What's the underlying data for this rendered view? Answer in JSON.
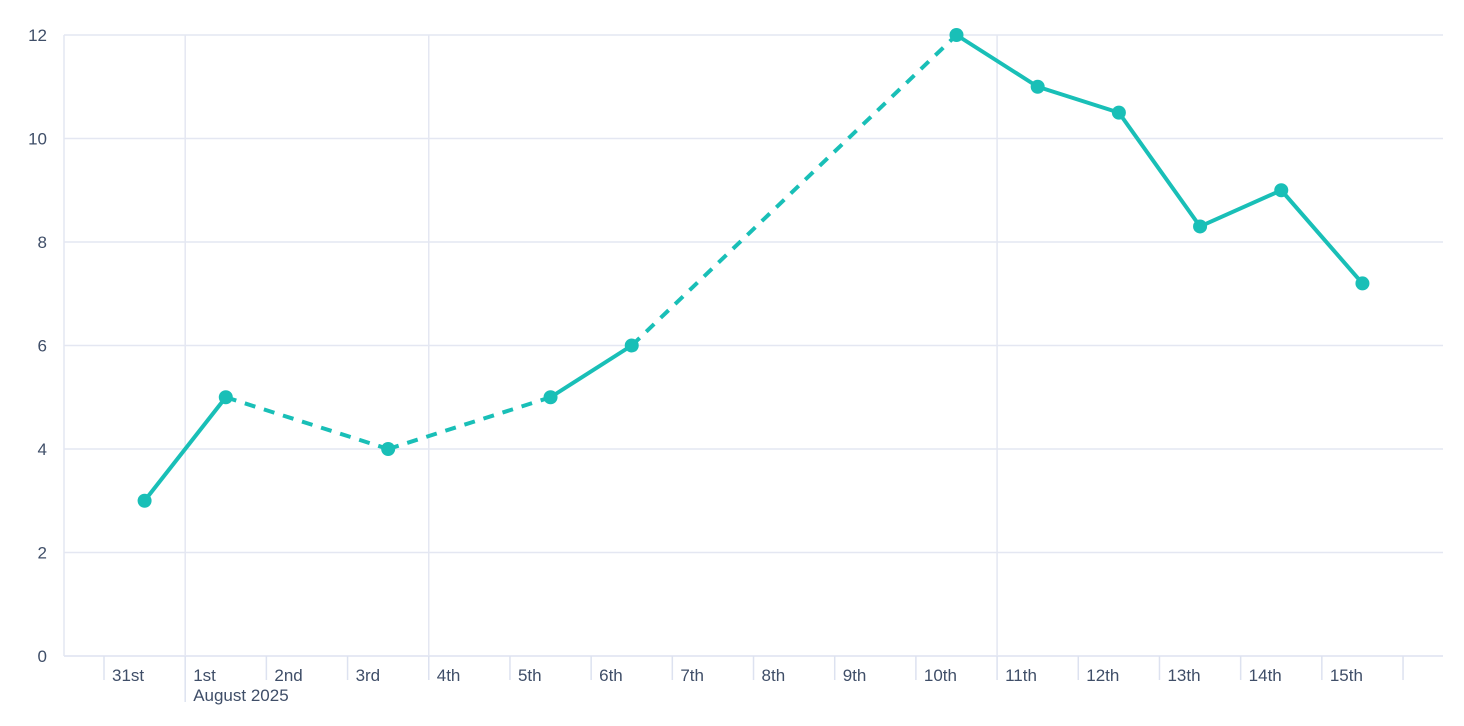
{
  "chart_data": {
    "type": "line",
    "title": "",
    "x_axis": {
      "tick_labels": [
        "31st",
        "1st",
        "2nd",
        "3rd",
        "4th",
        "5th",
        "6th",
        "7th",
        "8th",
        "9th",
        "10th",
        "11th",
        "12th",
        "13th",
        "14th",
        "15th"
      ],
      "month_label": "August 2025",
      "month_label_at": "1st"
    },
    "y_axis": {
      "tick_labels": [
        "0",
        "2",
        "4",
        "6",
        "8",
        "10",
        "12"
      ],
      "ticks": [
        0,
        2,
        4,
        6,
        8,
        10,
        12
      ],
      "range": [
        0,
        12
      ]
    },
    "series": [
      {
        "name": "",
        "color": "#19bfb7",
        "points": [
          {
            "x": "31st",
            "y": 3
          },
          {
            "x": "1st",
            "y": 5
          },
          {
            "x": "3rd",
            "y": 4
          },
          {
            "x": "5th",
            "y": 5
          },
          {
            "x": "6th",
            "y": 6
          },
          {
            "x": "10th",
            "y": 12
          },
          {
            "x": "11th",
            "y": 11
          },
          {
            "x": "12th",
            "y": 10.5
          },
          {
            "x": "13th",
            "y": 8.3
          },
          {
            "x": "14th",
            "y": 9
          },
          {
            "x": "15th",
            "y": 7.2
          }
        ],
        "segments": [
          {
            "from": "31st",
            "to": "1st",
            "style": "solid"
          },
          {
            "from": "1st",
            "to": "3rd",
            "style": "dashed"
          },
          {
            "from": "3rd",
            "to": "5th",
            "style": "dashed"
          },
          {
            "from": "5th",
            "to": "6th",
            "style": "solid"
          },
          {
            "from": "6th",
            "to": "10th",
            "style": "dashed"
          },
          {
            "from": "10th",
            "to": "15th",
            "style": "solid"
          }
        ]
      }
    ],
    "grid": {
      "horizontal_at": [
        0,
        2,
        4,
        6,
        8,
        10,
        12
      ],
      "vertical_at_labels": [
        "1st",
        "4th",
        "11th"
      ]
    },
    "legend": {
      "visible": false
    },
    "colors": {
      "line": "#19bfb7",
      "grid": "#e4e7f2",
      "axis": "#dde2f0",
      "text": "#3f4e68",
      "background": "#ffffff"
    }
  }
}
